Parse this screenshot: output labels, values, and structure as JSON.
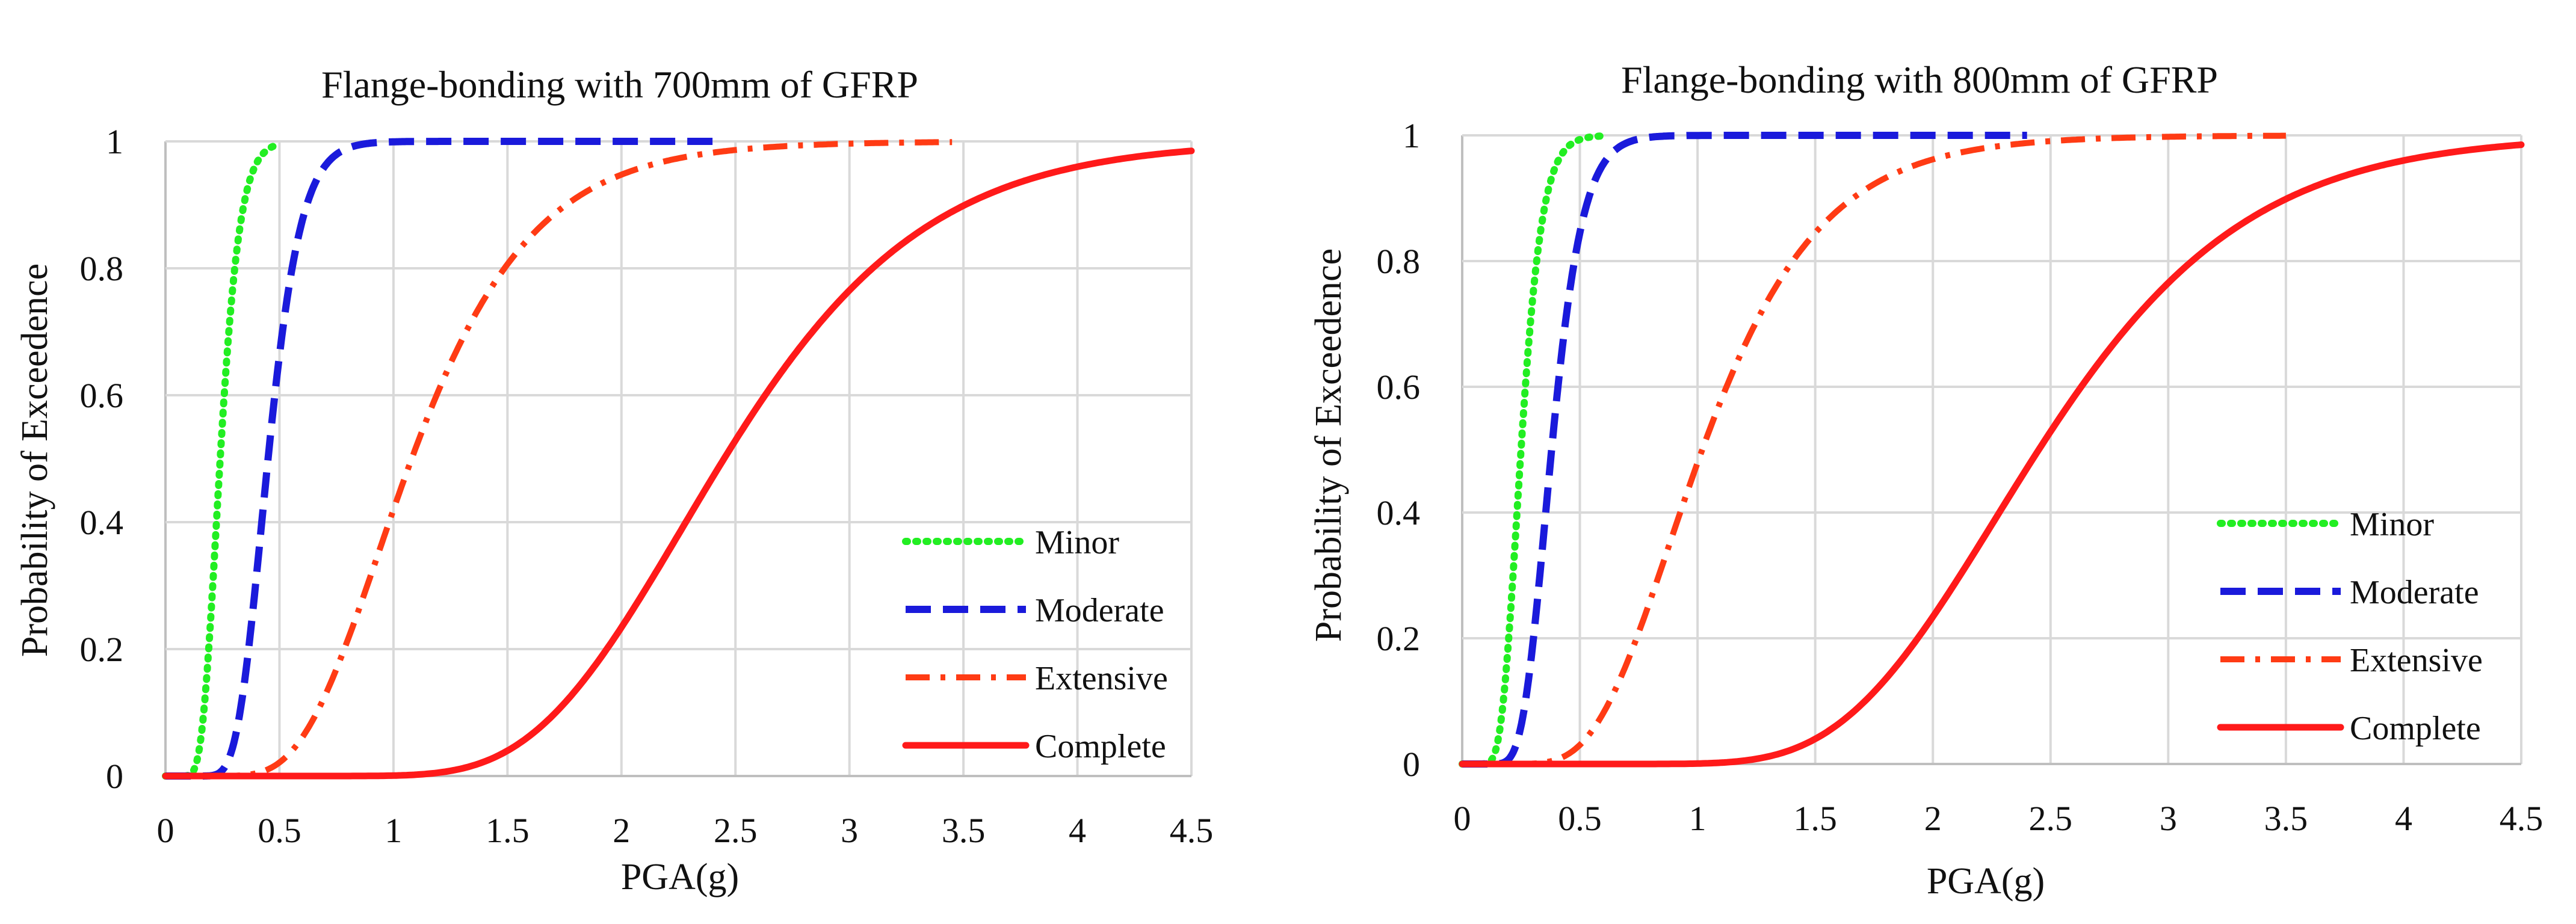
{
  "chart_data": [
    {
      "type": "line",
      "title": "Flange-bonding with 700mm of GFRP",
      "xlabel": "PGA(g)",
      "ylabel": "Probability of Exceedence",
      "xlim": [
        0,
        4.5
      ],
      "ylim": [
        0,
        1
      ],
      "x_ticks": [
        "0",
        "0.5",
        "1",
        "1.5",
        "2",
        "2.5",
        "3",
        "3.5",
        "4",
        "4.5"
      ],
      "y_ticks": [
        "0",
        "0.2",
        "0.4",
        "0.6",
        "0.8",
        "1"
      ],
      "grid": true,
      "legend_position": "bottom-right",
      "series": [
        {
          "name": "Minor",
          "color": "#22ee22",
          "dash": "dotted",
          "median": 0.24,
          "beta": 0.28,
          "x_end": 0.48
        },
        {
          "name": "Moderate",
          "color": "#1a1adb",
          "dash": "dashed",
          "median": 0.45,
          "beta": 0.25,
          "x_end": 2.4
        },
        {
          "name": "Extensive",
          "color": "#ff3b14",
          "dash": "dash-dot",
          "median": 1.08,
          "beta": 0.38,
          "x_end": 3.45
        },
        {
          "name": "Complete",
          "color": "#ff1a1a",
          "dash": "solid",
          "median": 2.45,
          "beta": 0.28,
          "x_end": 4.5
        }
      ]
    },
    {
      "type": "line",
      "title": "Flange-bonding with 800mm of GFRP",
      "xlabel": "PGA(g)",
      "ylabel": "Probability of Exceedence",
      "xlim": [
        0,
        4.5
      ],
      "ylim": [
        0,
        1
      ],
      "x_ticks": [
        "0",
        "0.5",
        "1",
        "1.5",
        "2",
        "2.5",
        "3",
        "3.5",
        "4",
        "4.5"
      ],
      "y_ticks": [
        "0",
        "0.2",
        "0.4",
        "0.6",
        "0.8",
        "1"
      ],
      "grid": true,
      "legend_position": "bottom-right",
      "series": [
        {
          "name": "Minor",
          "color": "#22ee22",
          "dash": "dotted",
          "median": 0.25,
          "beta": 0.28,
          "x_end": 0.6
        },
        {
          "name": "Moderate",
          "color": "#1a1adb",
          "dash": "dashed",
          "median": 0.38,
          "beta": 0.27,
          "x_end": 2.4
        },
        {
          "name": "Extensive",
          "color": "#ff3b14",
          "dash": "dash-dot",
          "median": 1.02,
          "beta": 0.38,
          "x_end": 3.5
        },
        {
          "name": "Complete",
          "color": "#ff1a1a",
          "dash": "solid",
          "median": 2.45,
          "beta": 0.28,
          "x_end": 4.5
        }
      ]
    }
  ]
}
